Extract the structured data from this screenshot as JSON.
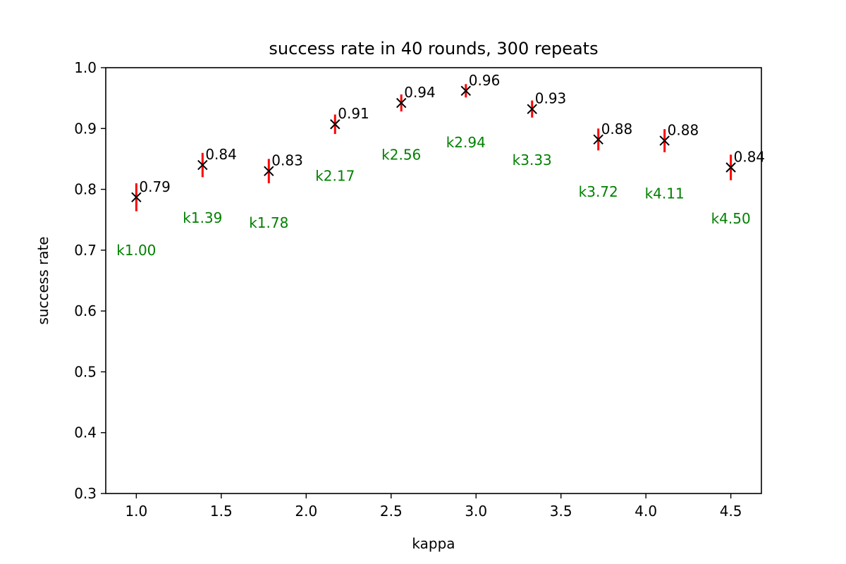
{
  "chart_data": {
    "type": "scatter",
    "title": "success rate in 40 rounds, 300 repeats",
    "xlabel": "kappa",
    "ylabel": "success rate",
    "xlim": [
      0.82,
      4.68
    ],
    "ylim": [
      0.3,
      1.0
    ],
    "xticks": [
      "1.0",
      "1.5",
      "2.0",
      "2.5",
      "3.0",
      "3.5",
      "4.0",
      "4.5"
    ],
    "yticks": [
      "0.3",
      "0.4",
      "0.5",
      "0.6",
      "0.7",
      "0.8",
      "0.9",
      "1.0"
    ],
    "grid": false,
    "marker": "x",
    "marker_color": "#000000",
    "errorbar_color": "#ff0000",
    "kappa_label_color": "#008000",
    "points": [
      {
        "x": 1.0,
        "y": 0.787,
        "err": 0.023,
        "value_label": "0.79",
        "kappa_label": "k1.00",
        "kappa_label_y": 0.7
      },
      {
        "x": 1.39,
        "y": 0.84,
        "err": 0.02,
        "value_label": "0.84",
        "kappa_label": "k1.39",
        "kappa_label_y": 0.753
      },
      {
        "x": 1.78,
        "y": 0.83,
        "err": 0.02,
        "value_label": "0.83",
        "kappa_label": "k1.78",
        "kappa_label_y": 0.745
      },
      {
        "x": 2.17,
        "y": 0.907,
        "err": 0.016,
        "value_label": "0.91",
        "kappa_label": "k2.17",
        "kappa_label_y": 0.822
      },
      {
        "x": 2.56,
        "y": 0.942,
        "err": 0.014,
        "value_label": "0.94",
        "kappa_label": "k2.56",
        "kappa_label_y": 0.857
      },
      {
        "x": 2.94,
        "y": 0.962,
        "err": 0.011,
        "value_label": "0.96",
        "kappa_label": "k2.94",
        "kappa_label_y": 0.877
      },
      {
        "x": 3.33,
        "y": 0.932,
        "err": 0.014,
        "value_label": "0.93",
        "kappa_label": "k3.33",
        "kappa_label_y": 0.848
      },
      {
        "x": 3.72,
        "y": 0.882,
        "err": 0.018,
        "value_label": "0.88",
        "kappa_label": "k3.72",
        "kappa_label_y": 0.796
      },
      {
        "x": 4.11,
        "y": 0.88,
        "err": 0.019,
        "value_label": "0.88",
        "kappa_label": "k4.11",
        "kappa_label_y": 0.793
      },
      {
        "x": 4.5,
        "y": 0.836,
        "err": 0.021,
        "value_label": "0.84",
        "kappa_label": "k4.50",
        "kappa_label_y": 0.752
      }
    ]
  }
}
